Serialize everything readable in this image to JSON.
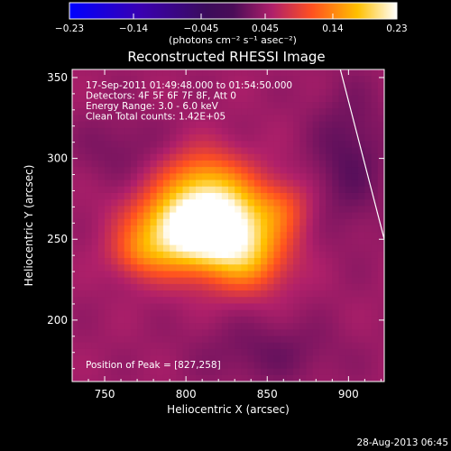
{
  "chart_data": {
    "type": "heatmap",
    "title": "Reconstructed RHESSI Image",
    "xlabel": "Heliocentric X (arcsec)",
    "ylabel": "Heliocentric Y (arcsec)",
    "xlim": [
      730,
      922
    ],
    "ylim": [
      162,
      355
    ],
    "x_ticks": [
      750,
      800,
      850,
      900
    ],
    "y_ticks": [
      200,
      250,
      300,
      350
    ],
    "colorbar": {
      "label": "(photons cm⁻² s⁻¹ asec⁻²)",
      "range": [
        -0.23,
        0.23
      ],
      "ticks": [
        -0.23,
        -0.14,
        -0.045,
        0.045,
        0.14,
        0.23
      ],
      "tick_labels": [
        "−0.23",
        "−0.14",
        "−0.045",
        "0.045",
        "0.14",
        "0.23"
      ]
    },
    "info_lines": [
      "17-Sep-2011 01:49:48.000 to 01:54:50.000",
      "Detectors: 4F 5F 6F 7F 8F, Att 0",
      "Energy Range: 3.0 - 6.0 keV",
      "Clean     Total counts: 1.42E+05"
    ],
    "peak_label": "Position of Peak = [827,258]",
    "peak": [
      827,
      258
    ],
    "footer": "28-Aug-2013 06:45",
    "background_level": 0.045,
    "sources": [
      {
        "x": 823,
        "y": 258,
        "sx": 22,
        "sy": 19,
        "amp": 0.19
      },
      {
        "x": 792,
        "y": 255,
        "sx": 20,
        "sy": 17,
        "amp": 0.13
      },
      {
        "x": 810,
        "y": 288,
        "sx": 18,
        "sy": 14,
        "amp": 0.07
      },
      {
        "x": 840,
        "y": 235,
        "sx": 17,
        "sy": 14,
        "amp": 0.06
      },
      {
        "x": 770,
        "y": 240,
        "sx": 12,
        "sy": 10,
        "amp": 0.04
      },
      {
        "x": 860,
        "y": 270,
        "sx": 12,
        "sy": 12,
        "amp": 0.04
      }
    ],
    "dark_patches": [
      {
        "x": 900,
        "y": 300,
        "sx": 16,
        "sy": 30,
        "amp": 0.035
      },
      {
        "x": 760,
        "y": 305,
        "sx": 20,
        "sy": 15,
        "amp": 0.02
      },
      {
        "x": 850,
        "y": 180,
        "sx": 30,
        "sy": 14,
        "amp": 0.025
      }
    ],
    "limb_line": [
      [
        895,
        355
      ],
      [
        922,
        250
      ]
    ]
  }
}
